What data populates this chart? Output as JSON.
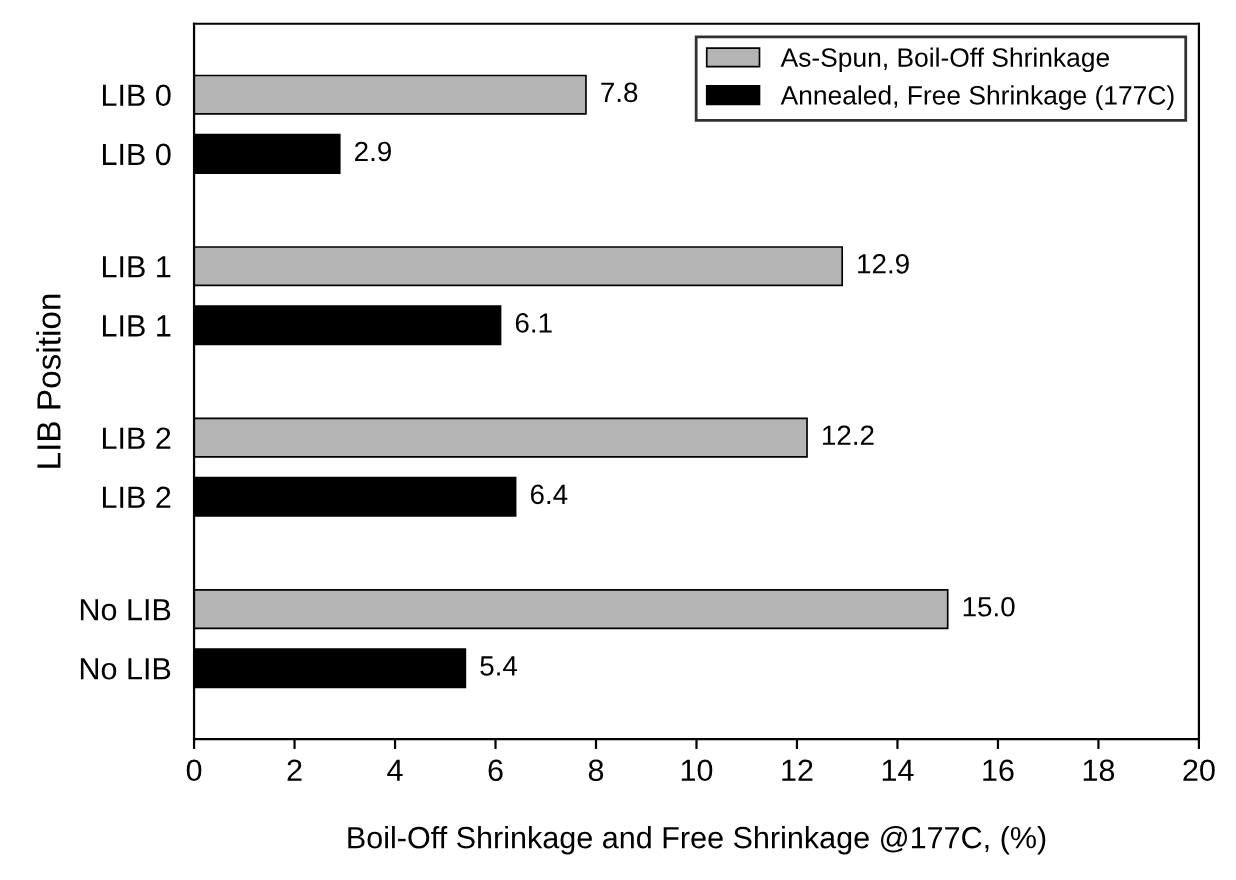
{
  "chart_data": {
    "type": "bar",
    "orientation": "horizontal",
    "xlabel": "Boil-Off Shrinkage and Free Shrinkage @177C, (%)",
    "ylabel": "LIB Position",
    "categories": [
      "LIB 0",
      "LIB 0",
      "LIB 1",
      "LIB 1",
      "LIB 2",
      "LIB 2",
      "No LIB",
      "No LIB"
    ],
    "series": [
      {
        "name": "As-Spun, Boil-Off Shrinkage",
        "color": "#b4b4b4",
        "values": [
          7.8,
          null,
          12.9,
          null,
          12.2,
          null,
          15.0,
          null
        ],
        "value_labels": [
          "7.8",
          null,
          "12.9",
          null,
          "12.2",
          null,
          "15.0",
          null
        ]
      },
      {
        "name": "Annealed, Free Shrinkage (177C)",
        "color": "#000000",
        "values": [
          null,
          2.9,
          null,
          6.1,
          null,
          6.4,
          null,
          5.4
        ],
        "value_labels": [
          null,
          "2.9",
          null,
          "6.1",
          null,
          "6.4",
          null,
          "5.4"
        ]
      }
    ],
    "xlim": [
      0,
      20
    ],
    "xticks": [
      0,
      2,
      4,
      6,
      8,
      10,
      12,
      14,
      16,
      18,
      20
    ],
    "grid": false,
    "legend": "top right"
  }
}
